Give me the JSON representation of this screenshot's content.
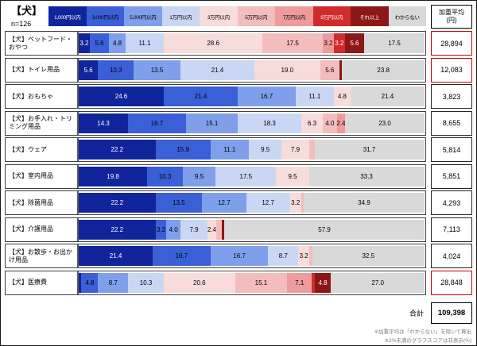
{
  "title": "【犬】",
  "sample_size": "n=126",
  "legend": [
    {
      "label": "1,000円以内",
      "color": "#10249B",
      "text_color": "#ffffff"
    },
    {
      "label": "3,000円以内",
      "color": "#3B5FD7",
      "text_color": "#000000"
    },
    {
      "label": "5,000円以内",
      "color": "#7F9FEB",
      "text_color": "#000000"
    },
    {
      "label": "1万円以内",
      "color": "#CAD7F4",
      "text_color": "#000000"
    },
    {
      "label": "3万円以内",
      "color": "#F8DCDC",
      "text_color": "#000000"
    },
    {
      "label": "5万円以内",
      "color": "#F4BDBD",
      "text_color": "#000000"
    },
    {
      "label": "7万円以内",
      "color": "#EE9B9B",
      "text_color": "#000000"
    },
    {
      "label": "9万円以内",
      "color": "#D22B2B",
      "text_color": "#ffffff"
    },
    {
      "label": "それ以上",
      "color": "#8C1717",
      "text_color": "#ffffff"
    },
    {
      "label": "わからない",
      "color": "#D9D9D9",
      "text_color": "#000000"
    }
  ],
  "weighted_avg_header": {
    "line1": "加重平均",
    "line2": "(円)"
  },
  "chart_data": {
    "type": "bar",
    "stacked": true,
    "orientation": "horizontal",
    "unit": "%",
    "xlim": [
      0,
      100
    ],
    "hide_label_below": 2,
    "segments": [
      "1,000円以内",
      "3,000円以内",
      "5,000円以内",
      "1万円以内",
      "3万円以内",
      "5万円以内",
      "7万円以内",
      "9万円以内",
      "それ以上",
      "わからない"
    ],
    "segment_colors": [
      "#10249B",
      "#3B5FD7",
      "#7F9FEB",
      "#CAD7F4",
      "#F8DCDC",
      "#F4BDBD",
      "#EE9B9B",
      "#D22B2B",
      "#8C1717",
      "#D9D9D9"
    ],
    "segment_text_colors": [
      "#ffffff",
      "#000000",
      "#000000",
      "#000000",
      "#000000",
      "#000000",
      "#000000",
      "#ffffff",
      "#ffffff",
      "#000000"
    ],
    "rows": [
      {
        "label": "【犬】ペットフード・おやつ",
        "values": [
          3.2,
          5.6,
          4.8,
          11.1,
          28.6,
          17.5,
          3.2,
          3.2,
          5.6,
          17.5
        ],
        "weighted_avg": "28,894",
        "highlight": true
      },
      {
        "label": "【犬】トイレ用品",
        "values": [
          5.6,
          10.3,
          13.5,
          21.4,
          19.0,
          5.6,
          0,
          0,
          0.8,
          23.8
        ],
        "weighted_avg": "12,083",
        "highlight": true
      },
      {
        "label": "【犬】おもちゃ",
        "values": [
          24.6,
          21.4,
          16.7,
          11.1,
          4.8,
          0,
          0,
          0,
          0,
          21.4
        ],
        "weighted_avg": "3,823",
        "highlight": false
      },
      {
        "label": "【犬】お手入れ・トリミング用品",
        "values": [
          14.3,
          16.7,
          15.1,
          18.3,
          6.3,
          4.0,
          2.4,
          0,
          0,
          23.0
        ],
        "weighted_avg": "8,655",
        "highlight": false
      },
      {
        "label": "【犬】ウェア",
        "values": [
          22.2,
          15.9,
          11.1,
          9.5,
          7.9,
          1.6,
          0,
          0,
          0,
          31.7
        ],
        "weighted_avg": "5,814",
        "highlight": false
      },
      {
        "label": "【犬】室内用品",
        "values": [
          19.8,
          10.3,
          9.5,
          17.5,
          9.5,
          0,
          0,
          0,
          0,
          33.3
        ],
        "weighted_avg": "5,851",
        "highlight": false
      },
      {
        "label": "【犬】除菌用品",
        "values": [
          22.2,
          13.5,
          12.7,
          12.7,
          3.2,
          0.8,
          0,
          0,
          0,
          34.9
        ],
        "weighted_avg": "4,293",
        "highlight": false
      },
      {
        "label": "【犬】介護用品",
        "values": [
          22.2,
          3.2,
          4.0,
          7.9,
          2.4,
          1.6,
          0,
          0,
          0.8,
          57.9
        ],
        "weighted_avg": "7,113",
        "highlight": false
      },
      {
        "label": "【犬】お散歩・お出かけ用品",
        "values": [
          21.4,
          16.7,
          16.7,
          8.7,
          3.2,
          0.8,
          0,
          0,
          0,
          32.5
        ],
        "weighted_avg": "4,024",
        "highlight": false
      },
      {
        "label": "【犬】医療費",
        "values": [
          0.8,
          4.8,
          8.7,
          10.3,
          20.6,
          15.1,
          7.1,
          0.8,
          4.8,
          27.0
        ],
        "weighted_avg": "28,848",
        "highlight": true
      }
    ],
    "total_label": "合計",
    "total_value": "109,398"
  },
  "footnotes": [
    "※加重平均は「わからない」を除いて算出",
    "※2%未満のグラフスコアは非表示(%)"
  ]
}
